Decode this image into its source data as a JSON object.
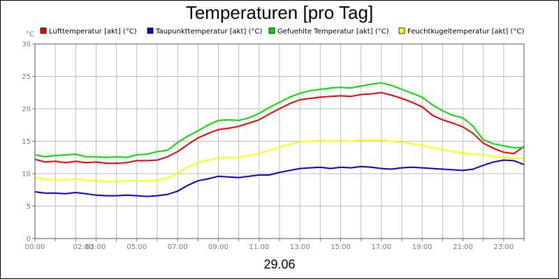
{
  "chart_data": {
    "type": "line",
    "title": "Temperaturen [pro Tag]",
    "ylabel": "°C",
    "xlabel": "29.06",
    "ylim": [
      0,
      30
    ],
    "yticks": [
      0,
      5,
      10,
      15,
      20,
      25,
      30
    ],
    "xlim": [
      0,
      24
    ],
    "xticks": [
      {
        "pos": 0,
        "label": "00:00"
      },
      {
        "pos": 2,
        "label": "02:00"
      },
      {
        "pos": 3,
        "label": "03:00"
      },
      {
        "pos": 5,
        "label": "05:00"
      },
      {
        "pos": 7,
        "label": "07:00"
      },
      {
        "pos": 9,
        "label": "09:00"
      },
      {
        "pos": 11,
        "label": "11:00"
      },
      {
        "pos": 13,
        "label": "13:00"
      },
      {
        "pos": 15,
        "label": "15:00"
      },
      {
        "pos": 17,
        "label": "17:00"
      },
      {
        "pos": 19,
        "label": "19:00"
      },
      {
        "pos": 21,
        "label": "21:00"
      },
      {
        "pos": 23,
        "label": "23:00"
      }
    ],
    "grid": true,
    "series": [
      {
        "name": "Lufttemperatur [akt] (°C)",
        "color": "#ee0000",
        "x": [
          0,
          0.5,
          1,
          1.5,
          2,
          2.5,
          3,
          3.5,
          4,
          4.5,
          5,
          5.5,
          6,
          6.5,
          7,
          7.5,
          8,
          8.5,
          9,
          9.5,
          10,
          10.5,
          11,
          11.5,
          12,
          12.5,
          13,
          13.5,
          14,
          14.5,
          15,
          15.5,
          16,
          16.5,
          17,
          17.5,
          18,
          18.5,
          19,
          19.5,
          20,
          20.5,
          21,
          21.5,
          22,
          22.5,
          23,
          23.5,
          24
        ],
        "values": [
          12.2,
          11.8,
          11.9,
          11.7,
          11.9,
          11.7,
          11.8,
          11.6,
          11.6,
          11.7,
          12.0,
          12.0,
          12.1,
          12.6,
          13.4,
          14.5,
          15.5,
          16.2,
          16.8,
          17.0,
          17.3,
          17.8,
          18.3,
          19.2,
          20.0,
          20.8,
          21.4,
          21.6,
          21.8,
          21.9,
          22.0,
          21.9,
          22.2,
          22.3,
          22.5,
          22.1,
          21.6,
          21.0,
          20.3,
          19.0,
          18.3,
          17.8,
          17.2,
          16.2,
          14.7,
          13.9,
          13.3,
          13.1,
          14.2
        ]
      },
      {
        "name": "Taupunkttemperatur [akt] (°C)",
        "color": "#0000cc",
        "x": [
          0,
          0.5,
          1,
          1.5,
          2,
          2.5,
          3,
          3.5,
          4,
          4.5,
          5,
          5.5,
          6,
          6.5,
          7,
          7.5,
          8,
          8.5,
          9,
          9.5,
          10,
          10.5,
          11,
          11.5,
          12,
          12.5,
          13,
          13.5,
          14,
          14.5,
          15,
          15.5,
          16,
          16.5,
          17,
          17.5,
          18,
          18.5,
          19,
          19.5,
          20,
          20.5,
          21,
          21.5,
          22,
          22.5,
          23,
          23.5,
          24
        ],
        "values": [
          7.2,
          7.0,
          7.0,
          6.9,
          7.1,
          6.9,
          6.7,
          6.6,
          6.6,
          6.7,
          6.6,
          6.5,
          6.6,
          6.8,
          7.3,
          8.2,
          8.9,
          9.2,
          9.6,
          9.5,
          9.4,
          9.6,
          9.8,
          9.8,
          10.2,
          10.5,
          10.8,
          10.9,
          11.0,
          10.8,
          11.0,
          10.9,
          11.1,
          11.0,
          10.8,
          10.7,
          10.9,
          11.0,
          10.9,
          10.8,
          10.7,
          10.6,
          10.5,
          10.7,
          11.3,
          11.8,
          12.1,
          12.0,
          11.4
        ]
      },
      {
        "name": "Gefuehlte Temperatur [akt] (°C)",
        "color": "#00dd00",
        "x": [
          0,
          0.5,
          1,
          1.5,
          2,
          2.5,
          3,
          3.5,
          4,
          4.5,
          5,
          5.5,
          6,
          6.5,
          7,
          7.5,
          8,
          8.5,
          9,
          9.5,
          10,
          10.5,
          11,
          11.5,
          12,
          12.5,
          13,
          13.5,
          14,
          14.5,
          15,
          15.5,
          16,
          16.5,
          17,
          17.5,
          18,
          18.5,
          19,
          19.5,
          20,
          20.5,
          21,
          21.5,
          22,
          22.5,
          23,
          23.5,
          24
        ],
        "values": [
          12.9,
          12.6,
          12.8,
          12.9,
          13.0,
          12.6,
          12.6,
          12.5,
          12.6,
          12.5,
          12.9,
          13.0,
          13.4,
          13.6,
          14.8,
          15.8,
          16.6,
          17.5,
          18.2,
          18.3,
          18.2,
          18.6,
          19.3,
          20.2,
          21.0,
          21.8,
          22.4,
          22.8,
          23.0,
          23.2,
          23.3,
          23.2,
          23.5,
          23.8,
          24.0,
          23.6,
          23.0,
          22.4,
          21.8,
          20.6,
          19.7,
          19.0,
          18.6,
          17.3,
          15.2,
          14.6,
          14.3,
          14.0,
          14.0
        ]
      },
      {
        "name": "Feuchtkugeltemperatur [akt] (°C)",
        "color": "#ffff00",
        "x": [
          0,
          0.5,
          1,
          1.5,
          2,
          2.5,
          3,
          3.5,
          4,
          4.5,
          5,
          5.5,
          6,
          6.5,
          7,
          7.5,
          8,
          8.5,
          9,
          9.5,
          10,
          10.5,
          11,
          11.5,
          12,
          12.5,
          13,
          13.5,
          14,
          14.5,
          15,
          15.5,
          16,
          16.5,
          17,
          17.5,
          18,
          18.5,
          19,
          19.5,
          20,
          20.5,
          21,
          21.5,
          22,
          22.5,
          23,
          23.5,
          24
        ],
        "values": [
          9.4,
          9.1,
          9.1,
          9.0,
          9.2,
          9.0,
          8.9,
          8.8,
          8.8,
          8.9,
          8.9,
          8.9,
          9.0,
          9.3,
          10.1,
          11.0,
          11.7,
          12.1,
          12.4,
          12.5,
          12.5,
          12.8,
          13.1,
          13.6,
          14.1,
          14.5,
          14.9,
          15.0,
          15.1,
          15.0,
          15.1,
          15.0,
          15.2,
          15.2,
          15.2,
          15.0,
          14.8,
          14.6,
          14.4,
          14.0,
          13.7,
          13.4,
          13.2,
          13.0,
          12.9,
          12.6,
          12.5,
          12.4,
          12.4
        ]
      }
    ]
  }
}
